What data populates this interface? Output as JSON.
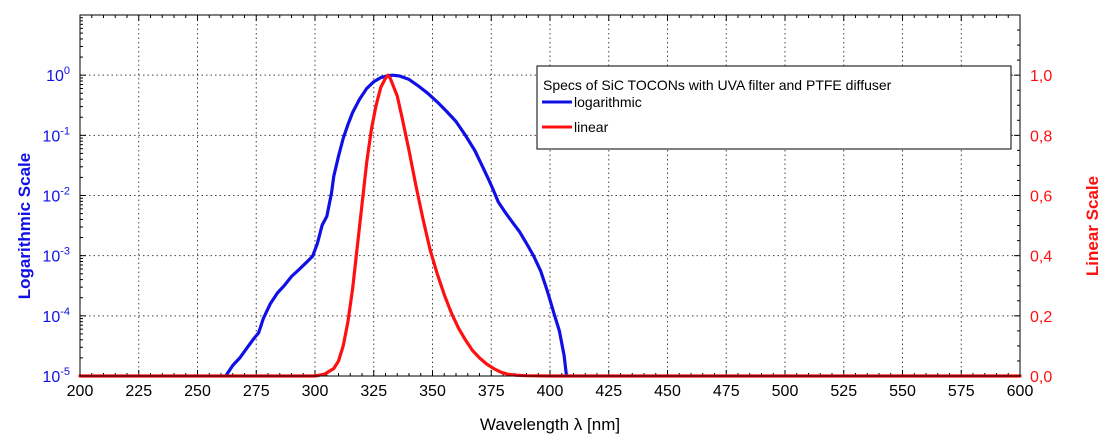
{
  "chart_data": {
    "type": "line",
    "title": "",
    "xlabel": "Wavelength λ [nm]",
    "ylabel_left": "Logarithmic Scale",
    "ylabel_right": "Linear Scale",
    "xlim": [
      200,
      600
    ],
    "x_ticks": [
      200,
      225,
      250,
      275,
      300,
      325,
      350,
      375,
      400,
      425,
      450,
      475,
      500,
      525,
      550,
      575,
      600
    ],
    "y_left_scale": "log",
    "y_left_lim": [
      1e-05,
      10
    ],
    "y_left_ticks": [
      {
        "value": 1e-05,
        "base": "10",
        "exp": "-5"
      },
      {
        "value": 0.0001,
        "base": "10",
        "exp": "-4"
      },
      {
        "value": 0.001,
        "base": "10",
        "exp": "-3"
      },
      {
        "value": 0.01,
        "base": "10",
        "exp": "-2"
      },
      {
        "value": 0.1,
        "base": "10",
        "exp": "-1"
      },
      {
        "value": 1,
        "base": "10",
        "exp": "0"
      }
    ],
    "y_right_lim": [
      0,
      1.2
    ],
    "y_right_ticks": [
      {
        "value": 0.0,
        "label": "0,0"
      },
      {
        "value": 0.2,
        "label": "0,2"
      },
      {
        "value": 0.4,
        "label": "0,4"
      },
      {
        "value": 0.6,
        "label": "0,6"
      },
      {
        "value": 0.8,
        "label": "0,8"
      },
      {
        "value": 1.0,
        "label": "1,0"
      }
    ],
    "grid": true,
    "legend": {
      "title": "Specs of SiC TOCONs with UVA filter and PTFE diffuser",
      "placement": "top-right"
    },
    "colors": {
      "left_axis": "#1010e6",
      "right_axis": "#ff1010"
    },
    "series": [
      {
        "name": "logarithmic",
        "axis": "left",
        "color": "#1010e6",
        "x": [
          262,
          265,
          268,
          271,
          274,
          276,
          278,
          281,
          284,
          287,
          290,
          293,
          296,
          299,
          301,
          303,
          305,
          307,
          308,
          310,
          312,
          314,
          316,
          319,
          322,
          325,
          328,
          331,
          333,
          336,
          340,
          344,
          348,
          352,
          356,
          360,
          364,
          368,
          371,
          374,
          376,
          378,
          381,
          384,
          387,
          390,
          393,
          396,
          399,
          402,
          404,
          406,
          407
        ],
        "y": [
          1e-05,
          1.5e-05,
          2e-05,
          2.9e-05,
          4.2e-05,
          5.2e-05,
          9e-05,
          0.00016,
          0.00024,
          0.00032,
          0.00045,
          0.00058,
          0.00075,
          0.00098,
          0.0016,
          0.0032,
          0.0045,
          0.011,
          0.021,
          0.045,
          0.089,
          0.15,
          0.24,
          0.4,
          0.6,
          0.78,
          0.91,
          0.98,
          1.0,
          0.97,
          0.85,
          0.66,
          0.5,
          0.36,
          0.25,
          0.17,
          0.1,
          0.056,
          0.032,
          0.018,
          0.012,
          0.0078,
          0.0052,
          0.0036,
          0.0025,
          0.0016,
          0.001,
          0.00056,
          0.00025,
          0.0001,
          5.6e-05,
          2.2e-05,
          1e-05
        ]
      },
      {
        "name": "linear",
        "axis": "right",
        "color": "#ff1010",
        "x": [
          200,
          300,
          304,
          308,
          310,
          312,
          314,
          316,
          318,
          320,
          322,
          324,
          326,
          328,
          330,
          331,
          332,
          333,
          335,
          337,
          340,
          343,
          346,
          349,
          352,
          355,
          358,
          361,
          364,
          367,
          370,
          373,
          376,
          379,
          382,
          385,
          390,
          400,
          600
        ],
        "y": [
          0.0,
          0.0,
          0.006,
          0.025,
          0.05,
          0.1,
          0.18,
          0.29,
          0.43,
          0.57,
          0.71,
          0.82,
          0.9,
          0.96,
          0.99,
          1.0,
          0.99,
          0.97,
          0.93,
          0.86,
          0.75,
          0.63,
          0.52,
          0.42,
          0.34,
          0.27,
          0.21,
          0.16,
          0.12,
          0.085,
          0.06,
          0.04,
          0.025,
          0.013,
          0.006,
          0.003,
          0.001,
          0.0,
          0.0
        ]
      }
    ]
  }
}
